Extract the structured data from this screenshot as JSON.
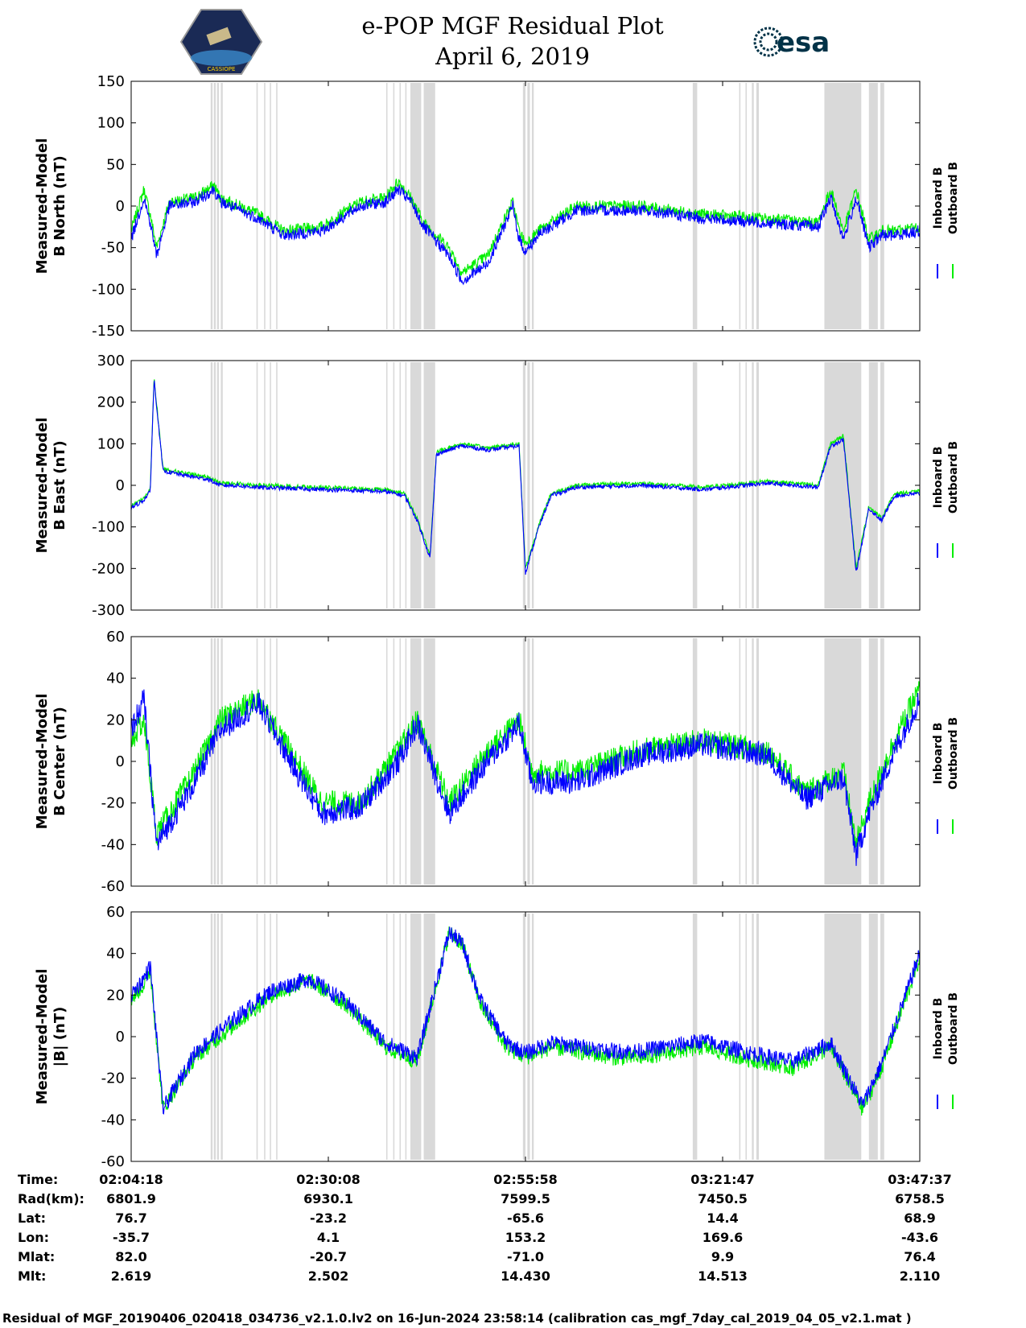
{
  "header": {
    "title": "e-POP MGF Residual Plot",
    "date": "April 6, 2019",
    "mission_badge_text": "CASSIOPE",
    "agency_logo_text": "esa"
  },
  "legend": {
    "inboard": "Inboard B",
    "outboard": "Outboard B"
  },
  "colors": {
    "inboard": "#0000ff",
    "outboard": "#00ee00",
    "shade": "#d9d9d9"
  },
  "ephemeris": {
    "row_labels": [
      "Time:",
      "Rad(km):",
      "Lat:",
      "Lon:",
      "Mlat:",
      "Mlt:"
    ],
    "columns": [
      [
        "02:04:18",
        "6801.9",
        "76.7",
        "-35.7",
        "82.0",
        "2.619"
      ],
      [
        "02:30:08",
        "6930.1",
        "-23.2",
        "4.1",
        "-20.7",
        "2.502"
      ],
      [
        "02:55:58",
        "7599.5",
        "-65.6",
        "153.2",
        "-71.0",
        "14.430"
      ],
      [
        "03:21:47",
        "7450.5",
        "14.4",
        "169.6",
        "9.9",
        "14.513"
      ],
      [
        "03:47:37",
        "6758.5",
        "68.9",
        "-43.6",
        "76.4",
        "2.110"
      ]
    ]
  },
  "footer": "Residual of MGF_20190406_020418_034736_v2.1.0.lv2 on 16-Jun-2024 23:58:14 (calibration cas_mgf_7day_cal_2019_04_05_v2.1.mat )",
  "chart_data": {
    "type": "line",
    "x_range": [
      0,
      6200
    ],
    "x_tick_labels": [
      "02:04:18",
      "02:30:08",
      "02:55:58",
      "03:21:47",
      "03:47:37"
    ],
    "shaded_intervals": [
      [
        625,
        640
      ],
      [
        650,
        665
      ],
      [
        675,
        690
      ],
      [
        705,
        720
      ],
      [
        985,
        995
      ],
      [
        1045,
        1055
      ],
      [
        1090,
        1100
      ],
      [
        1140,
        1150
      ],
      [
        2005,
        2015
      ],
      [
        2060,
        2070
      ],
      [
        2110,
        2120
      ],
      [
        2155,
        2165
      ],
      [
        2195,
        2280
      ],
      [
        2300,
        2390
      ],
      [
        3080,
        3100
      ],
      [
        3115,
        3135
      ],
      [
        3150,
        3165
      ],
      [
        4415,
        4450
      ],
      [
        4780,
        4790
      ],
      [
        4830,
        4840
      ],
      [
        4880,
        4895
      ],
      [
        4915,
        4935
      ],
      [
        5450,
        5740
      ],
      [
        5800,
        5870
      ],
      [
        5890,
        5920
      ]
    ],
    "panels": [
      {
        "ylabel": [
          "Measured-Model",
          "B North (nT)"
        ],
        "ylim": [
          -150,
          150
        ],
        "y_ticks": [
          -150,
          -100,
          -50,
          0,
          50,
          100,
          150
        ],
        "noise": 7,
        "series": [
          {
            "name": "Outboard B",
            "x": [
              0,
              100,
              150,
              200,
              300,
              500,
              650,
              700,
              1000,
              1200,
              1500,
              1800,
              2000,
              2100,
              2200,
              2300,
              2500,
              2600,
              2800,
              3000,
              3050,
              3100,
              3200,
              3500,
              4000,
              4500,
              5000,
              5400,
              5500,
              5600,
              5700,
              5800,
              5900,
              6000,
              6200
            ],
            "y": [
              -30,
              20,
              -10,
              -50,
              5,
              10,
              25,
              10,
              -10,
              -30,
              -25,
              5,
              10,
              30,
              10,
              -20,
              -50,
              -80,
              -60,
              5,
              -30,
              -45,
              -30,
              0,
              0,
              -10,
              -15,
              -20,
              20,
              -30,
              20,
              -40,
              -30,
              -30,
              -25
            ]
          },
          {
            "name": "Inboard B",
            "x": [
              0,
              100,
              150,
              200,
              300,
              500,
              650,
              700,
              1000,
              1200,
              1500,
              1800,
              2000,
              2100,
              2200,
              2300,
              2500,
              2600,
              2800,
              3000,
              3050,
              3100,
              3200,
              3500,
              4000,
              4500,
              5000,
              5400,
              5500,
              5600,
              5700,
              5800,
              5900,
              6000,
              6200
            ],
            "y": [
              -40,
              10,
              -20,
              -60,
              0,
              5,
              20,
              5,
              -15,
              -35,
              -30,
              0,
              5,
              20,
              5,
              -25,
              -60,
              -90,
              -70,
              0,
              -40,
              -55,
              -35,
              -5,
              -5,
              -15,
              -20,
              -25,
              10,
              -40,
              10,
              -50,
              -35,
              -35,
              -30
            ]
          }
        ]
      },
      {
        "ylabel": [
          "Measured-Model",
          "B East (nT)"
        ],
        "ylim": [
          -300,
          300
        ],
        "y_ticks": [
          -300,
          -200,
          -100,
          0,
          100,
          200,
          300
        ],
        "noise": 5,
        "series": [
          {
            "name": "Outboard B",
            "x": [
              0,
              100,
              150,
              180,
              250,
              400,
              600,
              700,
              800,
              1000,
              2000,
              2150,
              2250,
              2350,
              2400,
              2600,
              2800,
              3050,
              3100,
              3200,
              3300,
              3500,
              4000,
              4500,
              5000,
              5400,
              5500,
              5600,
              5700,
              5800,
              5900,
              6000,
              6200
            ],
            "y": [
              -50,
              -30,
              -10,
              260,
              40,
              30,
              20,
              5,
              5,
              0,
              -10,
              -20,
              -80,
              -170,
              80,
              100,
              90,
              100,
              -200,
              -100,
              -20,
              0,
              5,
              -5,
              10,
              0,
              100,
              120,
              -200,
              -50,
              -80,
              -20,
              -15
            ]
          },
          {
            "name": "Inboard B",
            "x": [
              0,
              100,
              150,
              180,
              250,
              400,
              600,
              700,
              800,
              1000,
              2000,
              2150,
              2250,
              2350,
              2400,
              2600,
              2800,
              3050,
              3100,
              3200,
              3300,
              3500,
              4000,
              4500,
              5000,
              5400,
              5500,
              5600,
              5700,
              5800,
              5900,
              6000,
              6200
            ],
            "y": [
              -55,
              -35,
              -15,
              255,
              35,
              25,
              15,
              0,
              0,
              -5,
              -15,
              -25,
              -85,
              -175,
              75,
              95,
              85,
              95,
              -210,
              -105,
              -25,
              -5,
              0,
              -10,
              5,
              -5,
              95,
              110,
              -210,
              -55,
              -85,
              -25,
              -20
            ]
          }
        ]
      },
      {
        "ylabel": [
          "Measured-Model",
          "B Center (nT)"
        ],
        "ylim": [
          -60,
          60
        ],
        "y_ticks": [
          -60,
          -40,
          -20,
          0,
          20,
          40,
          60
        ],
        "noise": 6,
        "series": [
          {
            "name": "Outboard B",
            "x": [
              0,
              100,
              200,
              500,
              700,
              1000,
              1300,
              1500,
              1800,
              2100,
              2250,
              2500,
              2800,
              3050,
              3150,
              3500,
              4000,
              4500,
              5000,
              5300,
              5600,
              5700,
              5800,
              6000,
              6200
            ],
            "y": [
              10,
              20,
              -35,
              -5,
              20,
              30,
              0,
              -20,
              -20,
              5,
              20,
              -20,
              5,
              20,
              -5,
              -5,
              5,
              10,
              5,
              -15,
              -5,
              -40,
              -20,
              10,
              35
            ]
          },
          {
            "name": "Inboard B",
            "x": [
              0,
              100,
              200,
              500,
              700,
              1000,
              1300,
              1500,
              1800,
              2100,
              2250,
              2500,
              2800,
              3050,
              3150,
              3500,
              4000,
              4500,
              5000,
              5300,
              5600,
              5700,
              5800,
              6000,
              6200
            ],
            "y": [
              15,
              30,
              -40,
              -10,
              15,
              28,
              -5,
              -25,
              -22,
              0,
              18,
              -25,
              0,
              18,
              -10,
              -10,
              3,
              8,
              3,
              -18,
              -8,
              -45,
              -25,
              5,
              30
            ]
          }
        ]
      },
      {
        "ylabel": [
          "Measured-Model",
          "|B| (nT)"
        ],
        "ylim": [
          -60,
          60
        ],
        "y_ticks": [
          -60,
          -40,
          -20,
          0,
          20,
          40,
          60
        ],
        "noise": 4,
        "series": [
          {
            "name": "Outboard B",
            "x": [
              0,
              100,
              150,
              250,
              500,
              800,
              1100,
              1400,
              1700,
              2000,
              2250,
              2500,
              2600,
              2750,
              2950,
              3100,
              3300,
              3800,
              4000,
              4500,
              4800,
              5200,
              5500,
              5750,
              5900,
              6100,
              6200
            ],
            "y": [
              18,
              25,
              32,
              -35,
              -10,
              5,
              20,
              27,
              15,
              -5,
              -12,
              50,
              45,
              15,
              -5,
              -10,
              -5,
              -10,
              -10,
              -5,
              -10,
              -15,
              -5,
              -35,
              -15,
              20,
              38
            ]
          },
          {
            "name": "Inboard B",
            "x": [
              0,
              100,
              150,
              250,
              500,
              800,
              1100,
              1400,
              1700,
              2000,
              2250,
              2500,
              2600,
              2750,
              2950,
              3100,
              3300,
              3800,
              4000,
              4500,
              4800,
              5200,
              5500,
              5750,
              5900,
              6100,
              6200
            ],
            "y": [
              20,
              28,
              34,
              -35,
              -8,
              8,
              22,
              28,
              16,
              -3,
              -10,
              50,
              45,
              17,
              -3,
              -8,
              -3,
              -7,
              -7,
              -2,
              -7,
              -12,
              -3,
              -33,
              -13,
              22,
              40
            ]
          }
        ]
      }
    ]
  }
}
